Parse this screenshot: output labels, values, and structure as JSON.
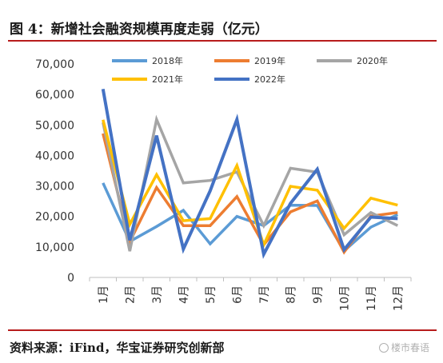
{
  "figure": {
    "title": "图 4：新增社会融资规模再度走弱（亿元）",
    "source": "资料来源：iFind，华宝证券研究创新部",
    "watermark": "楼市春语"
  },
  "chart_data": {
    "type": "line",
    "categories": [
      "1月",
      "2月",
      "3月",
      "4月",
      "5月",
      "6月",
      "7月",
      "8月",
      "9月",
      "10月",
      "11月",
      "12月"
    ],
    "ylim": [
      0,
      70000
    ],
    "yticks": [
      0,
      10000,
      20000,
      30000,
      40000,
      50000,
      60000,
      70000
    ],
    "ytick_labels": [
      "0",
      "10,000",
      "20,000",
      "30,000",
      "40,000",
      "50,000",
      "60,000",
      "70,000"
    ],
    "grid": false,
    "legend_position": "top",
    "series": [
      {
        "name": "2018年",
        "color": "#5b9bd5",
        "values": [
          31000,
          11800,
          16700,
          22000,
          11000,
          20000,
          17000,
          23700,
          23600,
          8700,
          16500,
          20600
        ]
      },
      {
        "name": "2019年",
        "color": "#ed7d31",
        "values": [
          47200,
          11700,
          29500,
          17000,
          17000,
          26500,
          10700,
          21500,
          25100,
          8300,
          20100,
          21300
        ]
      },
      {
        "name": "2020年",
        "color": "#a5a5a5",
        "values": [
          50800,
          8600,
          51800,
          31000,
          31800,
          34600,
          17000,
          35800,
          34500,
          14000,
          21300,
          17000
        ]
      },
      {
        "name": "2021年",
        "color": "#ffc000",
        "values": [
          51700,
          17400,
          33700,
          18600,
          19300,
          36700,
          10700,
          29900,
          28600,
          16100,
          26000,
          23700
        ]
      },
      {
        "name": "2022年",
        "color": "#4472c4",
        "values": [
          61800,
          12200,
          46500,
          9300,
          28400,
          51800,
          7600,
          24300,
          35500,
          9100,
          19800,
          19300
        ]
      }
    ]
  }
}
